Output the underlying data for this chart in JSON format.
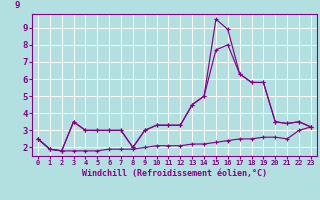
{
  "xlabel": "Windchill (Refroidissement éolien,°C)",
  "background_color": "#b2e0e0",
  "line_color": "#880088",
  "grid_color": "#ffffff",
  "xlim": [
    -0.5,
    23.5
  ],
  "ylim": [
    1.5,
    9.8
  ],
  "yticks": [
    2,
    3,
    4,
    5,
    6,
    7,
    8,
    9
  ],
  "xticks": [
    0,
    1,
    2,
    3,
    4,
    5,
    6,
    7,
    8,
    9,
    10,
    11,
    12,
    13,
    14,
    15,
    16,
    17,
    18,
    19,
    20,
    21,
    22,
    23
  ],
  "line1_x": [
    0,
    1,
    2,
    3,
    4,
    5,
    6,
    7,
    8,
    9,
    10,
    11,
    12,
    13,
    14,
    15,
    16,
    17,
    18,
    19,
    20,
    21,
    22,
    23
  ],
  "line1_y": [
    2.5,
    1.9,
    1.8,
    3.5,
    3.0,
    3.0,
    3.0,
    3.0,
    2.0,
    3.0,
    3.3,
    3.3,
    3.3,
    4.5,
    5.0,
    9.5,
    8.9,
    6.3,
    5.8,
    5.8,
    3.5,
    3.4,
    3.5,
    3.2
  ],
  "line2_x": [
    0,
    1,
    2,
    3,
    4,
    5,
    6,
    7,
    8,
    9,
    10,
    11,
    12,
    13,
    14,
    15,
    16,
    17,
    18,
    19,
    20,
    21,
    22,
    23
  ],
  "line2_y": [
    2.5,
    1.9,
    1.8,
    3.5,
    3.0,
    3.0,
    3.0,
    3.0,
    2.0,
    3.0,
    3.3,
    3.3,
    3.3,
    4.5,
    5.0,
    7.7,
    8.0,
    6.3,
    5.8,
    5.8,
    3.5,
    3.4,
    3.5,
    3.2
  ],
  "line3_x": [
    0,
    1,
    2,
    3,
    4,
    5,
    6,
    7,
    8,
    9,
    10,
    11,
    12,
    13,
    14,
    15,
    16,
    17,
    18,
    19,
    20,
    21,
    22,
    23
  ],
  "line3_y": [
    2.5,
    1.9,
    1.8,
    1.8,
    1.8,
    1.8,
    1.9,
    1.9,
    1.9,
    2.0,
    2.1,
    2.1,
    2.1,
    2.2,
    2.2,
    2.3,
    2.4,
    2.5,
    2.5,
    2.6,
    2.6,
    2.5,
    3.0,
    3.2
  ],
  "ytick_labelsize": 6.5,
  "xtick_labelsize": 5.0
}
